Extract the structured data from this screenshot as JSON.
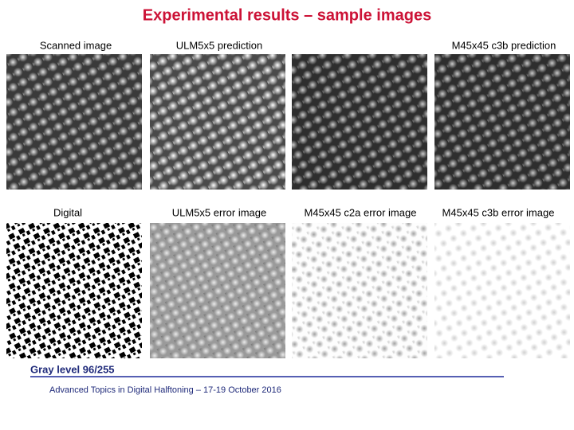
{
  "title": "Experimental results – sample images",
  "top_labels": [
    "Scanned image",
    "ULM5x5 prediction",
    "M45x45 c3b prediction"
  ],
  "bottom_labels": [
    "Digital",
    "ULM5x5 error image",
    "M45x45 c2a error image",
    "M45x45 c3b error image"
  ],
  "caption": "Gray level 96/255",
  "footer": "Advanced Topics in Digital Halftoning – 17-19 October 2016"
}
